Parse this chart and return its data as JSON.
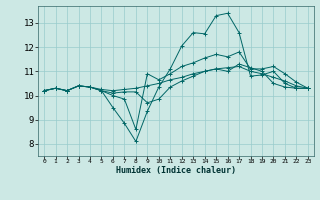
{
  "xlabel": "Humidex (Indice chaleur)",
  "ylabel": "",
  "bg_color": "#cce8e4",
  "line_color": "#006666",
  "grid_color": "#99cccc",
  "xlim": [
    -0.5,
    23.5
  ],
  "ylim": [
    7.5,
    13.7
  ],
  "xticks": [
    0,
    1,
    2,
    3,
    4,
    5,
    6,
    7,
    8,
    9,
    10,
    11,
    12,
    13,
    14,
    15,
    16,
    17,
    18,
    19,
    20,
    21,
    22,
    23
  ],
  "yticks": [
    8,
    9,
    10,
    11,
    12,
    13
  ],
  "series": [
    [
      10.2,
      10.3,
      10.2,
      10.4,
      10.35,
      10.2,
      10.1,
      10.15,
      10.15,
      9.7,
      9.85,
      10.35,
      10.6,
      10.8,
      11.0,
      11.1,
      11.0,
      11.3,
      11.15,
      11.0,
      10.5,
      10.35,
      10.3,
      10.3
    ],
    [
      10.2,
      10.3,
      10.2,
      10.4,
      10.35,
      10.2,
      9.5,
      8.85,
      8.1,
      9.35,
      10.35,
      11.1,
      12.05,
      12.6,
      12.55,
      13.3,
      13.4,
      12.6,
      10.8,
      10.85,
      11.0,
      10.5,
      10.3,
      10.3
    ],
    [
      10.2,
      10.3,
      10.2,
      10.4,
      10.35,
      10.2,
      10.0,
      9.85,
      8.6,
      10.9,
      10.65,
      10.9,
      11.2,
      11.35,
      11.55,
      11.7,
      11.6,
      11.8,
      11.1,
      11.1,
      11.2,
      10.9,
      10.55,
      10.3
    ],
    [
      10.2,
      10.3,
      10.2,
      10.4,
      10.35,
      10.25,
      10.2,
      10.25,
      10.3,
      10.4,
      10.5,
      10.65,
      10.75,
      10.9,
      11.0,
      11.1,
      11.15,
      11.2,
      11.0,
      10.9,
      10.75,
      10.6,
      10.4,
      10.3
    ]
  ]
}
